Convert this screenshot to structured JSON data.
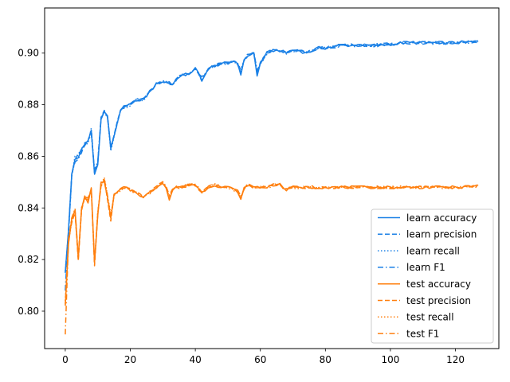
{
  "chart_data": {
    "type": "line",
    "title": "",
    "xlabel": "",
    "ylabel": "",
    "xlim": [
      -6.35,
      133.35
    ],
    "ylim": [
      0.7855,
      0.9175
    ],
    "xticks": [
      0,
      20,
      40,
      60,
      80,
      100,
      120
    ],
    "yticks": [
      0.8,
      0.82,
      0.84,
      0.86,
      0.88,
      0.9
    ],
    "ytick_labels": [
      "0.80",
      "0.82",
      "0.84",
      "0.86",
      "0.88",
      "0.90"
    ],
    "grid": false,
    "legend_position": "lower-right",
    "colors": {
      "learn": "#1f77b4",
      "learn_bright": "#1a80e6",
      "test": "#ff7f0e"
    },
    "linestyles": {
      "accuracy": "solid",
      "precision": "dashed",
      "recall": "dotted",
      "F1": "dashdot"
    },
    "anchors": {
      "learn": [
        [
          0,
          0.816
        ],
        [
          1,
          0.831
        ],
        [
          2,
          0.853
        ],
        [
          3,
          0.859
        ],
        [
          4,
          0.86
        ],
        [
          5,
          0.862
        ],
        [
          6,
          0.864
        ],
        [
          7,
          0.866
        ],
        [
          8,
          0.87
        ],
        [
          9,
          0.86
        ],
        [
          10,
          0.858
        ],
        [
          11,
          0.874
        ],
        [
          12,
          0.877
        ],
        [
          13,
          0.876
        ],
        [
          14,
          0.866
        ],
        [
          15,
          0.868
        ],
        [
          16,
          0.873
        ],
        [
          17,
          0.878
        ],
        [
          18,
          0.879
        ],
        [
          20,
          0.88
        ],
        [
          22,
          0.882
        ],
        [
          24,
          0.882
        ],
        [
          26,
          0.885
        ],
        [
          28,
          0.888
        ],
        [
          30,
          0.889
        ],
        [
          33,
          0.888
        ],
        [
          35,
          0.891
        ],
        [
          38,
          0.892
        ],
        [
          40,
          0.894
        ],
        [
          42,
          0.89
        ],
        [
          44,
          0.894
        ],
        [
          46,
          0.895
        ],
        [
          48,
          0.896
        ],
        [
          50,
          0.896
        ],
        [
          52,
          0.897
        ],
        [
          54,
          0.895
        ],
        [
          56,
          0.899
        ],
        [
          58,
          0.9
        ],
        [
          60,
          0.896
        ],
        [
          62,
          0.9
        ],
        [
          64,
          0.901
        ],
        [
          66,
          0.901
        ],
        [
          68,
          0.9
        ],
        [
          70,
          0.901
        ],
        [
          72,
          0.901
        ],
        [
          74,
          0.9
        ],
        [
          76,
          0.901
        ],
        [
          78,
          0.902
        ],
        [
          80,
          0.902
        ],
        [
          85,
          0.903
        ],
        [
          90,
          0.903
        ],
        [
          95,
          0.903
        ],
        [
          100,
          0.9035
        ],
        [
          105,
          0.904
        ],
        [
          110,
          0.904
        ],
        [
          115,
          0.904
        ],
        [
          120,
          0.904
        ],
        [
          127,
          0.9045
        ]
      ],
      "test": [
        [
          0,
          0.803
        ],
        [
          1,
          0.827
        ],
        [
          2,
          0.835
        ],
        [
          3,
          0.839
        ],
        [
          4,
          0.83
        ],
        [
          5,
          0.84
        ],
        [
          6,
          0.844
        ],
        [
          7,
          0.843
        ],
        [
          8,
          0.847
        ],
        [
          9,
          0.834
        ],
        [
          10,
          0.838
        ],
        [
          11,
          0.849
        ],
        [
          12,
          0.851
        ],
        [
          13,
          0.844
        ],
        [
          14,
          0.838
        ],
        [
          15,
          0.845
        ],
        [
          16,
          0.846
        ],
        [
          18,
          0.848
        ],
        [
          20,
          0.847
        ],
        [
          22,
          0.846
        ],
        [
          24,
          0.844
        ],
        [
          26,
          0.846
        ],
        [
          28,
          0.848
        ],
        [
          30,
          0.85
        ],
        [
          32,
          0.846
        ],
        [
          34,
          0.848
        ],
        [
          36,
          0.848
        ],
        [
          38,
          0.849
        ],
        [
          40,
          0.849
        ],
        [
          42,
          0.846
        ],
        [
          44,
          0.848
        ],
        [
          46,
          0.849
        ],
        [
          48,
          0.848
        ],
        [
          50,
          0.848
        ],
        [
          52,
          0.847
        ],
        [
          54,
          0.846
        ],
        [
          56,
          0.849
        ],
        [
          58,
          0.848
        ],
        [
          60,
          0.848
        ],
        [
          62,
          0.848
        ],
        [
          64,
          0.849
        ],
        [
          66,
          0.849
        ],
        [
          68,
          0.847
        ],
        [
          70,
          0.848
        ],
        [
          75,
          0.848
        ],
        [
          80,
          0.848
        ],
        [
          90,
          0.848
        ],
        [
          100,
          0.848
        ],
        [
          110,
          0.848
        ],
        [
          120,
          0.848
        ],
        [
          127,
          0.8485
        ]
      ]
    },
    "dips": {
      "learn": [
        [
          9,
          0.853
        ],
        [
          14,
          0.862
        ],
        [
          42,
          0.889
        ],
        [
          54,
          0.892
        ],
        [
          59,
          0.891
        ]
      ],
      "test": [
        [
          4,
          0.82
        ],
        [
          9,
          0.818
        ],
        [
          14,
          0.835
        ],
        [
          32,
          0.843
        ],
        [
          54,
          0.843
        ]
      ]
    },
    "series": [
      {
        "name": "learn accuracy",
        "group": "learn",
        "metric": "accuracy"
      },
      {
        "name": "learn precision",
        "group": "learn",
        "metric": "precision"
      },
      {
        "name": "learn recall",
        "group": "learn",
        "metric": "recall"
      },
      {
        "name": "learn F1",
        "group": "learn",
        "metric": "F1"
      },
      {
        "name": "test accuracy",
        "group": "test",
        "metric": "accuracy"
      },
      {
        "name": "test precision",
        "group": "test",
        "metric": "precision"
      },
      {
        "name": "test recall",
        "group": "test",
        "metric": "recall"
      },
      {
        "name": "test F1",
        "group": "test",
        "metric": "F1"
      }
    ]
  }
}
